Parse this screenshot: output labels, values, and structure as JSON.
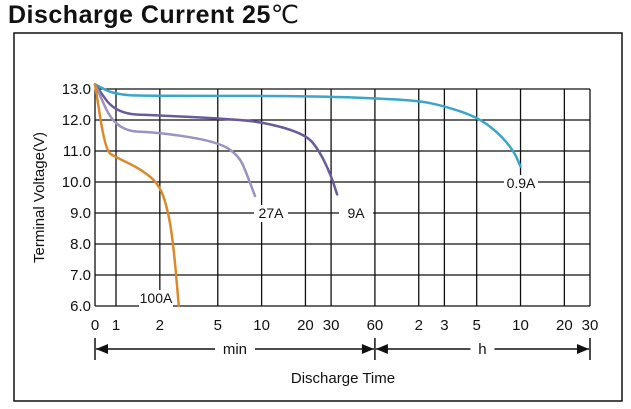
{
  "chart_data": {
    "type": "line",
    "title": "Discharge Current 25",
    "title_unit": "℃",
    "xlabel": "Discharge Time",
    "ylabel": "Terminal Voltage(V)",
    "ylim": [
      6.0,
      13.0
    ],
    "y_ticks": [
      "13.0",
      "12.0",
      "11.0",
      "10.0",
      "9.0",
      "8.0",
      "7.0",
      "6.0"
    ],
    "x_scale": "log",
    "x_ticks_min": [
      "0",
      "1",
      "2",
      "5",
      "10",
      "20",
      "30",
      "60"
    ],
    "x_ticks_h": [
      "2",
      "3",
      "5",
      "10",
      "20",
      "30"
    ],
    "unit_min_label": "min",
    "unit_h_label": "h",
    "grid": true,
    "series": [
      {
        "name": "0.9A",
        "color": "#3aa6c8",
        "points": [
          [
            "0 min",
            13.15
          ],
          [
            "1 min",
            12.8
          ],
          [
            "2 min",
            12.78
          ],
          [
            "10 min",
            12.78
          ],
          [
            "30 min",
            12.75
          ],
          [
            "60 min",
            12.7
          ],
          [
            "2 h",
            12.62
          ],
          [
            "3 h",
            12.45
          ],
          [
            "5 h",
            12.1
          ],
          [
            "7 h",
            11.6
          ],
          [
            "9 h",
            11.0
          ],
          [
            "10 h",
            10.5
          ]
        ]
      },
      {
        "name": "9A",
        "color": "#6a5a9a",
        "points": [
          [
            "0 min",
            13.15
          ],
          [
            "1 min",
            12.2
          ],
          [
            "2 min",
            12.15
          ],
          [
            "5 min",
            12.05
          ],
          [
            "10 min",
            11.95
          ],
          [
            "20 min",
            11.55
          ],
          [
            "25 min",
            11.0
          ],
          [
            "30 min",
            10.2
          ],
          [
            "33 min",
            9.6
          ]
        ]
      },
      {
        "name": "27A",
        "color": "#9a93c0",
        "points": [
          [
            "0 min",
            13.15
          ],
          [
            "1 min",
            11.65
          ],
          [
            "2 min",
            11.6
          ],
          [
            "5 min",
            11.3
          ],
          [
            "7 min",
            10.85
          ],
          [
            "8 min",
            10.2
          ],
          [
            "9 min",
            9.55
          ]
        ]
      },
      {
        "name": "100A",
        "color": "#d98a2b",
        "points": [
          [
            "0 min",
            13.15
          ],
          [
            "0.5 min",
            11.0
          ],
          [
            "1 min",
            10.8
          ],
          [
            "1.5 min",
            10.4
          ],
          [
            "2 min",
            9.9
          ],
          [
            "2.3 min",
            9.0
          ],
          [
            "2.5 min",
            7.8
          ],
          [
            "2.7 min",
            6.0
          ]
        ]
      }
    ]
  }
}
